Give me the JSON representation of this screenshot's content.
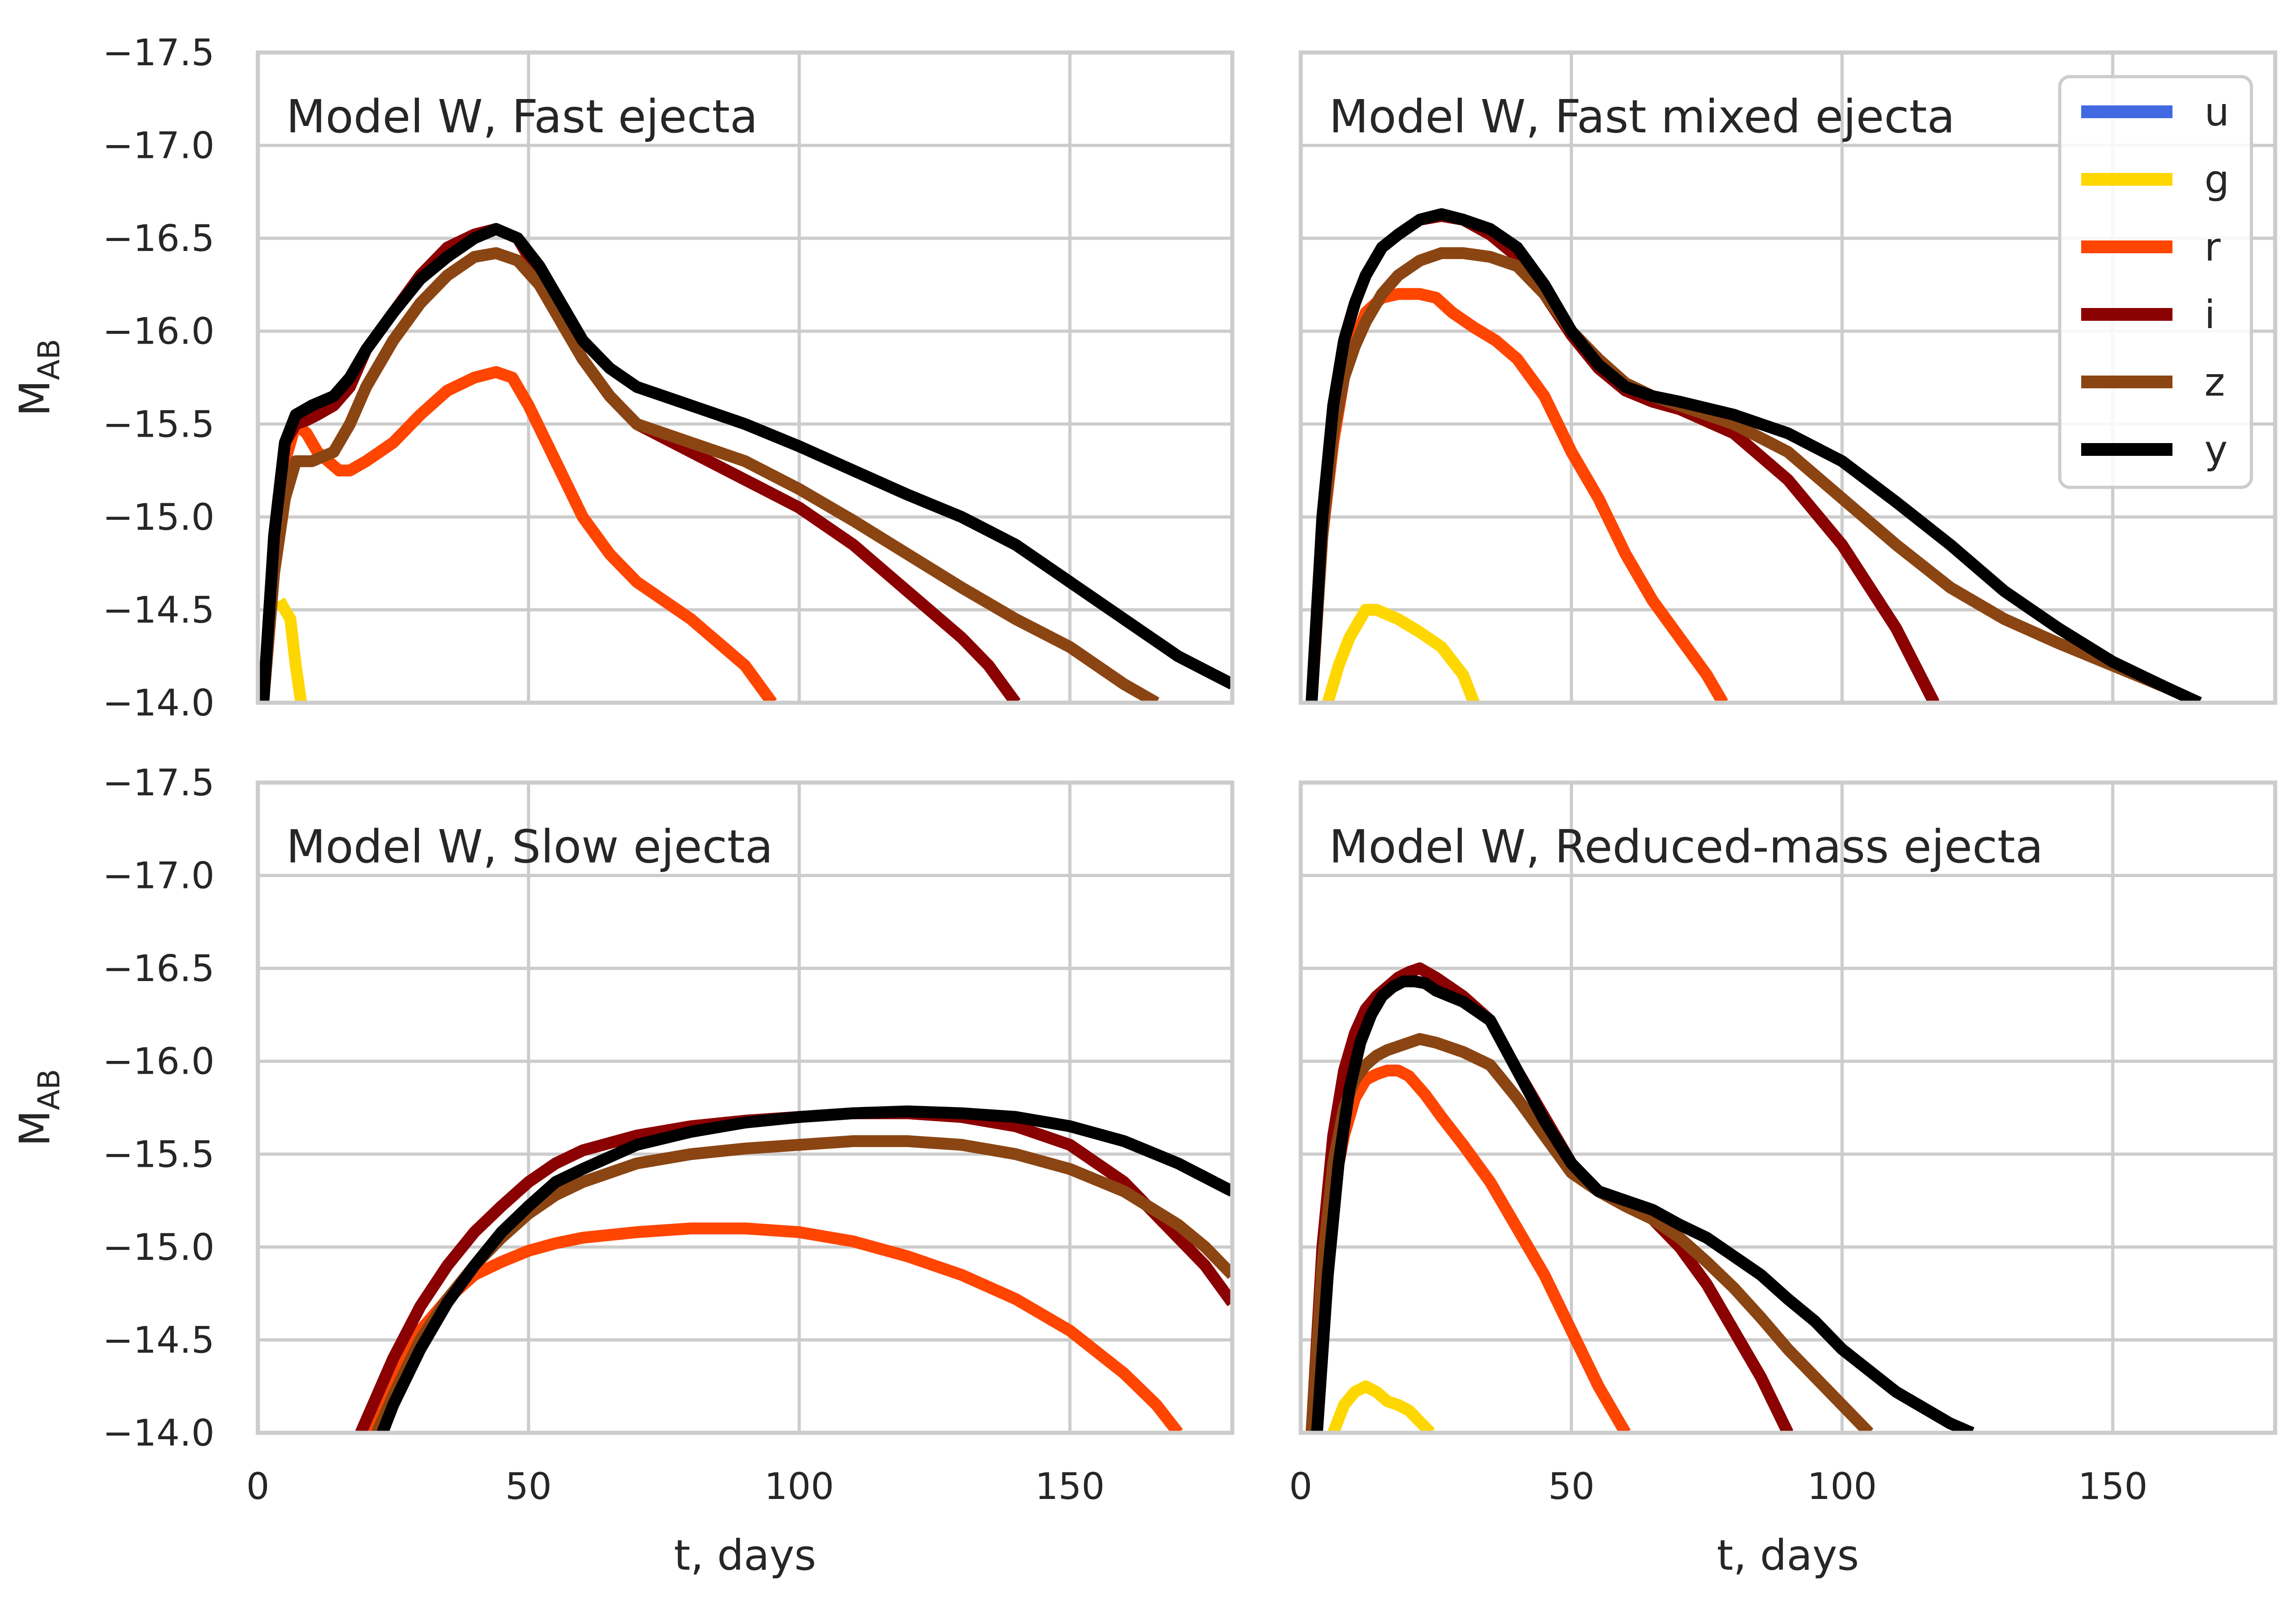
{
  "chart_data": [
    {
      "type": "line",
      "title": "Model W, Fast ejecta",
      "xlabel": "",
      "ylabel": "M_AB",
      "xlim": [
        0,
        180
      ],
      "ylim": [
        -14.0,
        -17.5
      ],
      "xticks": [
        0,
        50,
        100,
        150
      ],
      "yticks": [
        -17.5,
        -17.0,
        -16.5,
        -16.0,
        -15.5,
        -15.0,
        -14.5,
        -14.0
      ],
      "grid": true,
      "series": [
        {
          "name": "g",
          "x": [
            4,
            6,
            7,
            8
          ],
          "y": [
            -14.55,
            -14.45,
            -14.2,
            -14.0
          ]
        },
        {
          "name": "r",
          "x": [
            1,
            3,
            5,
            7,
            9,
            11,
            13,
            15,
            17,
            20,
            25,
            30,
            35,
            40,
            44,
            47,
            50,
            55,
            60,
            65,
            70,
            80,
            90,
            95
          ],
          "y": [
            -14.0,
            -14.8,
            -15.3,
            -15.5,
            -15.45,
            -15.35,
            -15.3,
            -15.25,
            -15.25,
            -15.3,
            -15.4,
            -15.55,
            -15.68,
            -15.75,
            -15.78,
            -15.75,
            -15.6,
            -15.3,
            -15.0,
            -14.8,
            -14.65,
            -14.45,
            -14.2,
            -14.0
          ]
        },
        {
          "name": "i",
          "x": [
            1,
            3,
            5,
            7,
            9,
            11,
            14,
            17,
            20,
            25,
            30,
            35,
            40,
            44,
            48,
            52,
            56,
            60,
            65,
            70,
            80,
            90,
            100,
            110,
            120,
            130,
            135,
            140
          ],
          "y": [
            -14.0,
            -14.9,
            -15.4,
            -15.5,
            -15.52,
            -15.55,
            -15.6,
            -15.7,
            -15.9,
            -16.1,
            -16.3,
            -16.45,
            -16.52,
            -16.55,
            -16.5,
            -16.3,
            -16.05,
            -15.85,
            -15.65,
            -15.5,
            -15.35,
            -15.2,
            -15.05,
            -14.85,
            -14.6,
            -14.35,
            -14.2,
            -14.0
          ]
        },
        {
          "name": "z",
          "x": [
            1,
            3,
            5,
            7,
            10,
            14,
            17,
            20,
            25,
            30,
            35,
            40,
            44,
            48,
            52,
            56,
            60,
            65,
            70,
            80,
            90,
            100,
            110,
            120,
            130,
            140,
            150,
            160,
            166
          ],
          "y": [
            -14.0,
            -14.7,
            -15.1,
            -15.3,
            -15.3,
            -15.35,
            -15.5,
            -15.7,
            -15.95,
            -16.15,
            -16.3,
            -16.4,
            -16.42,
            -16.38,
            -16.25,
            -16.05,
            -15.85,
            -15.65,
            -15.5,
            -15.4,
            -15.3,
            -15.15,
            -14.98,
            -14.8,
            -14.62,
            -14.45,
            -14.3,
            -14.1,
            -14.0
          ]
        },
        {
          "name": "y",
          "x": [
            1,
            3,
            5,
            7,
            10,
            14,
            17,
            20,
            25,
            30,
            35,
            40,
            44,
            48,
            52,
            56,
            60,
            65,
            70,
            80,
            90,
            100,
            110,
            120,
            130,
            140,
            150,
            160,
            170,
            180
          ],
          "y": [
            -14.0,
            -14.9,
            -15.4,
            -15.55,
            -15.6,
            -15.65,
            -15.75,
            -15.9,
            -16.1,
            -16.28,
            -16.4,
            -16.5,
            -16.55,
            -16.5,
            -16.35,
            -16.15,
            -15.95,
            -15.8,
            -15.7,
            -15.6,
            -15.5,
            -15.38,
            -15.25,
            -15.12,
            -15.0,
            -14.85,
            -14.65,
            -14.45,
            -14.25,
            -14.1
          ]
        }
      ]
    },
    {
      "type": "line",
      "title": "Model W, Fast mixed ejecta",
      "xlabel": "",
      "ylabel": "",
      "xlim": [
        0,
        180
      ],
      "ylim": [
        -14.0,
        -17.5
      ],
      "xticks": [
        0,
        50,
        100,
        150
      ],
      "yticks": [
        -17.5,
        -17.0,
        -16.5,
        -16.0,
        -15.5,
        -15.0,
        -14.5,
        -14.0
      ],
      "grid": true,
      "series": [
        {
          "name": "g",
          "x": [
            5,
            7,
            9,
            12,
            14,
            18,
            22,
            26,
            30,
            32
          ],
          "y": [
            -14.0,
            -14.2,
            -14.35,
            -14.5,
            -14.5,
            -14.45,
            -14.38,
            -14.3,
            -14.15,
            -14.0
          ]
        },
        {
          "name": "r",
          "x": [
            2,
            4,
            6,
            8,
            10,
            12,
            15,
            18,
            22,
            25,
            28,
            32,
            36,
            40,
            45,
            50,
            55,
            60,
            65,
            70,
            75,
            78
          ],
          "y": [
            -14.0,
            -14.9,
            -15.4,
            -15.75,
            -15.95,
            -16.1,
            -16.18,
            -16.2,
            -16.2,
            -16.18,
            -16.1,
            -16.02,
            -15.95,
            -15.85,
            -15.65,
            -15.35,
            -15.1,
            -14.8,
            -14.55,
            -14.35,
            -14.15,
            -14.0
          ]
        },
        {
          "name": "i",
          "x": [
            2,
            4,
            6,
            8,
            10,
            12,
            15,
            18,
            22,
            26,
            30,
            35,
            40,
            45,
            50,
            55,
            60,
            65,
            70,
            80,
            90,
            100,
            110,
            117
          ],
          "y": [
            -14.0,
            -15.0,
            -15.6,
            -15.95,
            -16.15,
            -16.3,
            -16.45,
            -16.52,
            -16.6,
            -16.62,
            -16.6,
            -16.52,
            -16.4,
            -16.2,
            -15.98,
            -15.8,
            -15.68,
            -15.62,
            -15.58,
            -15.45,
            -15.2,
            -14.85,
            -14.4,
            -14.0
          ]
        },
        {
          "name": "z",
          "x": [
            2,
            4,
            6,
            8,
            10,
            12,
            15,
            18,
            22,
            26,
            30,
            35,
            40,
            45,
            50,
            55,
            60,
            65,
            70,
            80,
            90,
            100,
            110,
            120,
            130,
            140,
            150,
            160,
            166
          ],
          "y": [
            -14.0,
            -14.9,
            -15.45,
            -15.75,
            -15.92,
            -16.05,
            -16.2,
            -16.3,
            -16.38,
            -16.42,
            -16.42,
            -16.4,
            -16.35,
            -16.2,
            -16.0,
            -15.85,
            -15.72,
            -15.65,
            -15.6,
            -15.5,
            -15.35,
            -15.1,
            -14.85,
            -14.62,
            -14.45,
            -14.32,
            -14.2,
            -14.08,
            -14.0
          ]
        },
        {
          "name": "y",
          "x": [
            2,
            4,
            6,
            8,
            10,
            12,
            15,
            18,
            22,
            26,
            30,
            35,
            40,
            45,
            50,
            55,
            60,
            65,
            70,
            80,
            90,
            100,
            110,
            120,
            130,
            140,
            150,
            160,
            166
          ],
          "y": [
            -14.0,
            -15.0,
            -15.6,
            -15.95,
            -16.15,
            -16.3,
            -16.45,
            -16.52,
            -16.6,
            -16.63,
            -16.6,
            -16.55,
            -16.45,
            -16.25,
            -16.0,
            -15.82,
            -15.7,
            -15.65,
            -15.62,
            -15.55,
            -15.45,
            -15.3,
            -15.08,
            -14.85,
            -14.6,
            -14.4,
            -14.22,
            -14.08,
            -14.0
          ]
        }
      ]
    },
    {
      "type": "line",
      "title": "Model W, Slow ejecta",
      "xlabel": "t, days",
      "ylabel": "M_AB",
      "xlim": [
        0,
        180
      ],
      "ylim": [
        -14.0,
        -17.5
      ],
      "xticks": [
        0,
        50,
        100,
        150
      ],
      "yticks": [
        -17.5,
        -17.0,
        -16.5,
        -16.0,
        -15.5,
        -15.0,
        -14.5,
        -14.0
      ],
      "grid": true,
      "series": [
        {
          "name": "r",
          "x": [
            20,
            25,
            30,
            35,
            40,
            45,
            50,
            55,
            60,
            70,
            80,
            90,
            100,
            110,
            120,
            130,
            140,
            150,
            160,
            166,
            170
          ],
          "y": [
            -14.0,
            -14.3,
            -14.55,
            -14.72,
            -14.85,
            -14.92,
            -14.98,
            -15.02,
            -15.05,
            -15.08,
            -15.1,
            -15.1,
            -15.08,
            -15.03,
            -14.95,
            -14.85,
            -14.72,
            -14.55,
            -14.32,
            -14.15,
            -14.0
          ]
        },
        {
          "name": "i",
          "x": [
            19,
            25,
            30,
            35,
            40,
            45,
            50,
            55,
            60,
            70,
            80,
            90,
            100,
            110,
            120,
            130,
            140,
            150,
            160,
            170,
            175,
            180
          ],
          "y": [
            -14.0,
            -14.4,
            -14.68,
            -14.9,
            -15.08,
            -15.22,
            -15.35,
            -15.45,
            -15.52,
            -15.6,
            -15.65,
            -15.68,
            -15.7,
            -15.72,
            -15.72,
            -15.7,
            -15.65,
            -15.55,
            -15.35,
            -15.05,
            -14.9,
            -14.7
          ]
        },
        {
          "name": "z",
          "x": [
            22,
            25,
            30,
            35,
            40,
            45,
            50,
            55,
            60,
            70,
            80,
            90,
            100,
            110,
            120,
            130,
            140,
            150,
            160,
            170,
            175,
            180
          ],
          "y": [
            -14.0,
            -14.2,
            -14.5,
            -14.72,
            -14.9,
            -15.05,
            -15.18,
            -15.28,
            -15.35,
            -15.45,
            -15.5,
            -15.53,
            -15.55,
            -15.57,
            -15.57,
            -15.55,
            -15.5,
            -15.42,
            -15.3,
            -15.12,
            -15.0,
            -14.85
          ]
        },
        {
          "name": "y",
          "x": [
            23,
            25,
            30,
            35,
            40,
            45,
            50,
            55,
            60,
            70,
            80,
            90,
            100,
            110,
            120,
            130,
            140,
            150,
            160,
            170,
            180
          ],
          "y": [
            -14.0,
            -14.15,
            -14.45,
            -14.7,
            -14.9,
            -15.08,
            -15.22,
            -15.35,
            -15.42,
            -15.55,
            -15.62,
            -15.67,
            -15.7,
            -15.72,
            -15.73,
            -15.72,
            -15.7,
            -15.65,
            -15.57,
            -15.45,
            -15.3
          ]
        }
      ]
    },
    {
      "type": "line",
      "title": "Model W, Reduced-mass ejecta",
      "xlabel": "t, days",
      "ylabel": "",
      "xlim": [
        0,
        180
      ],
      "ylim": [
        -14.0,
        -17.5
      ],
      "xticks": [
        0,
        50,
        100,
        150
      ],
      "yticks": [
        -17.5,
        -17.0,
        -16.5,
        -16.0,
        -15.5,
        -15.0,
        -14.5,
        -14.0
      ],
      "grid": true,
      "series": [
        {
          "name": "g",
          "x": [
            6,
            8,
            10,
            12,
            14,
            16,
            18,
            20,
            22,
            24
          ],
          "y": [
            -14.0,
            -14.15,
            -14.22,
            -14.25,
            -14.22,
            -14.17,
            -14.15,
            -14.12,
            -14.06,
            -14.0
          ]
        },
        {
          "name": "r",
          "x": [
            2,
            4,
            6,
            8,
            10,
            12,
            14,
            16,
            18,
            20,
            23,
            26,
            30,
            35,
            40,
            45,
            50,
            55,
            60
          ],
          "y": [
            -14.0,
            -14.8,
            -15.3,
            -15.6,
            -15.8,
            -15.9,
            -15.93,
            -15.95,
            -15.95,
            -15.92,
            -15.82,
            -15.7,
            -15.55,
            -15.35,
            -15.1,
            -14.85,
            -14.55,
            -14.25,
            -14.0
          ]
        },
        {
          "name": "i",
          "x": [
            2,
            4,
            6,
            8,
            10,
            12,
            14,
            16,
            18,
            20,
            22,
            25,
            30,
            35,
            40,
            45,
            50,
            55,
            60,
            65,
            70,
            75,
            80,
            85,
            90
          ],
          "y": [
            -14.0,
            -15.0,
            -15.6,
            -15.95,
            -16.15,
            -16.28,
            -16.35,
            -16.4,
            -16.45,
            -16.48,
            -16.5,
            -16.45,
            -16.35,
            -16.22,
            -15.95,
            -15.7,
            -15.45,
            -15.3,
            -15.25,
            -15.15,
            -15.0,
            -14.8,
            -14.55,
            -14.3,
            -14.0
          ]
        },
        {
          "name": "z",
          "x": [
            2,
            4,
            6,
            8,
            10,
            12,
            14,
            16,
            18,
            20,
            22,
            25,
            30,
            35,
            40,
            45,
            50,
            55,
            60,
            65,
            70,
            75,
            80,
            85,
            90,
            95,
            100,
            105
          ],
          "y": [
            -14.0,
            -14.9,
            -15.45,
            -15.75,
            -15.9,
            -15.98,
            -16.03,
            -16.06,
            -16.08,
            -16.1,
            -16.12,
            -16.1,
            -16.05,
            -15.98,
            -15.8,
            -15.6,
            -15.4,
            -15.3,
            -15.22,
            -15.15,
            -15.05,
            -14.92,
            -14.78,
            -14.62,
            -14.45,
            -14.3,
            -14.15,
            -14.0
          ]
        },
        {
          "name": "y",
          "x": [
            3,
            5,
            7,
            9,
            11,
            13,
            15,
            17,
            19,
            21,
            23,
            25,
            30,
            35,
            40,
            45,
            50,
            55,
            60,
            65,
            70,
            75,
            80,
            85,
            90,
            95,
            100,
            110,
            120,
            124
          ],
          "y": [
            -14.0,
            -14.85,
            -15.45,
            -15.85,
            -16.1,
            -16.25,
            -16.35,
            -16.4,
            -16.43,
            -16.43,
            -16.42,
            -16.38,
            -16.32,
            -16.22,
            -15.95,
            -15.68,
            -15.45,
            -15.3,
            -15.25,
            -15.2,
            -15.12,
            -15.05,
            -14.95,
            -14.85,
            -14.72,
            -14.6,
            -14.45,
            -14.22,
            -14.05,
            -14.0
          ]
        }
      ]
    }
  ],
  "legend": {
    "location": "upper right",
    "entries": [
      {
        "name": "u",
        "color": "#4169e1"
      },
      {
        "name": "g",
        "color": "#ffd700"
      },
      {
        "name": "r",
        "color": "#ff4500"
      },
      {
        "name": "i",
        "color": "#8b0000"
      },
      {
        "name": "z",
        "color": "#8b4513"
      },
      {
        "name": "y",
        "color": "#000000"
      }
    ]
  },
  "tick_labels": {
    "y": [
      "−17.5",
      "−17.0",
      "−16.5",
      "−16.0",
      "−15.5",
      "−15.0",
      "−14.5",
      "−14.0"
    ],
    "x": [
      "0",
      "50",
      "100",
      "150"
    ]
  }
}
